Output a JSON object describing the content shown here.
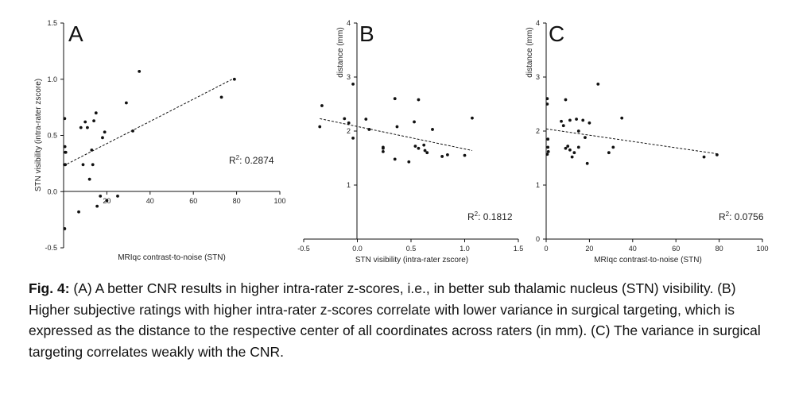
{
  "chart_data": [
    {
      "type": "scatter",
      "panel": "A",
      "xlabel": "MRIqc contrast-to-noise (STN)",
      "ylabel": "STN visibility  (intra-rater zscore)",
      "xlim": [
        0,
        100
      ],
      "ylim": [
        -0.5,
        1.5
      ],
      "xticks": [
        20,
        40,
        60,
        80,
        100
      ],
      "xtick_labels": [
        "20",
        "40",
        "60",
        "80",
        "100"
      ],
      "yticks": [
        -0.5,
        0,
        0.5,
        1.0,
        1.5
      ],
      "ytick_labels": [
        "-0.5",
        "0.0",
        "0.5",
        "1.0",
        "1.5"
      ],
      "x": [
        0.5,
        0.5,
        0.6,
        0.8,
        0.8,
        1.0,
        0.4,
        7,
        8,
        9,
        10,
        11,
        12,
        13,
        13.5,
        14,
        15,
        15.5,
        17,
        18,
        19,
        20,
        25,
        29,
        32,
        35,
        73,
        79
      ],
      "y": [
        -0.33,
        0.65,
        0.4,
        0.35,
        0.24,
        0.35,
        0.24,
        -0.18,
        0.57,
        0.24,
        0.62,
        0.57,
        0.11,
        0.37,
        0.24,
        0.63,
        0.7,
        -0.13,
        -0.04,
        0.48,
        0.53,
        -0.08,
        -0.04,
        0.79,
        0.54,
        1.07,
        0.84,
        1.0
      ],
      "trendline": {
        "x": [
          0,
          79
        ],
        "y": [
          0.23,
          1.01
        ]
      },
      "annotation": {
        "base": "R",
        "sup": "2",
        "text": ": 0.2874"
      }
    },
    {
      "type": "scatter",
      "panel": "B",
      "xlabel": "STN visibility  (intra-rater zscore)",
      "ylabel": "distance (mm)",
      "xlim": [
        -0.5,
        1.5
      ],
      "ylim": [
        0,
        4
      ],
      "xticks": [
        -0.5,
        0,
        0.5,
        1.0,
        1.5
      ],
      "xtick_labels": [
        "-0.5",
        "0.0",
        "0.5",
        "1.0",
        "1.5"
      ],
      "yticks": [
        0,
        1,
        2,
        3,
        4
      ],
      "ytick_labels": [
        "",
        "1",
        "2",
        "3",
        "4"
      ],
      "x": [
        -0.33,
        -0.35,
        -0.12,
        -0.08,
        -0.04,
        -0.04,
        0.08,
        0.11,
        0.24,
        0.24,
        0.24,
        0.35,
        0.35,
        0.37,
        0.48,
        0.53,
        0.54,
        0.57,
        0.57,
        0.62,
        0.63,
        0.65,
        0.7,
        0.79,
        0.84,
        1.0,
        1.07
      ],
      "y": [
        2.47,
        2.08,
        2.23,
        2.15,
        1.87,
        2.87,
        2.22,
        2.03,
        1.68,
        1.7,
        1.62,
        2.6,
        1.48,
        2.08,
        1.43,
        2.17,
        1.72,
        2.58,
        1.68,
        1.74,
        1.64,
        1.6,
        2.03,
        1.53,
        1.56,
        1.55,
        2.24
      ],
      "trendline": {
        "x": [
          -0.35,
          1.07
        ],
        "y": [
          2.23,
          1.64
        ]
      },
      "annotation": {
        "base": "R",
        "sup": "2",
        "text": ": 0.1812"
      }
    },
    {
      "type": "scatter",
      "panel": "C",
      "xlabel": "MRIqc contrast-to-noise (STN)",
      "ylabel": "distance (mm)",
      "xlim": [
        0,
        100
      ],
      "ylim": [
        0,
        4
      ],
      "xticks": [
        0,
        20,
        40,
        60,
        80,
        100
      ],
      "xtick_labels": [
        "0",
        "20",
        "40",
        "60",
        "80",
        "100"
      ],
      "yticks": [
        0,
        1,
        2,
        3,
        4
      ],
      "ytick_labels": [
        "0",
        "1",
        "2",
        "3",
        "4"
      ],
      "x": [
        0.5,
        0.5,
        0.8,
        0.8,
        1.0,
        0.5,
        7,
        8,
        9,
        9,
        10,
        11,
        11,
        12,
        13,
        14,
        15,
        15,
        17,
        18,
        19,
        20,
        24,
        29,
        31,
        35,
        73,
        79
      ],
      "y": [
        2.6,
        2.5,
        1.85,
        1.7,
        1.62,
        1.57,
        2.18,
        2.1,
        2.58,
        1.68,
        1.72,
        1.65,
        2.2,
        1.52,
        1.6,
        2.22,
        2.0,
        1.7,
        2.2,
        1.88,
        1.4,
        2.15,
        2.87,
        1.6,
        1.7,
        2.24,
        1.52,
        1.56
      ],
      "trendline": {
        "x": [
          0,
          79
        ],
        "y": [
          2.04,
          1.58
        ]
      },
      "annotation": {
        "base": "R",
        "sup": "2",
        "text": ": 0.0756"
      }
    }
  ],
  "caption": {
    "label": "Fig. 4:",
    "text": " (A) A better CNR results in higher intra-rater z-scores, i.e., in better sub thalamic nucleus (STN) visibility. (B) Higher subjective ratings with higher intra-rater z-scores correlate with lower variance in surgical targeting, which is expressed as the distance to the respective center of all coordinates across raters (in mm). (C) The variance in surgical targeting correlates weakly with the CNR."
  }
}
